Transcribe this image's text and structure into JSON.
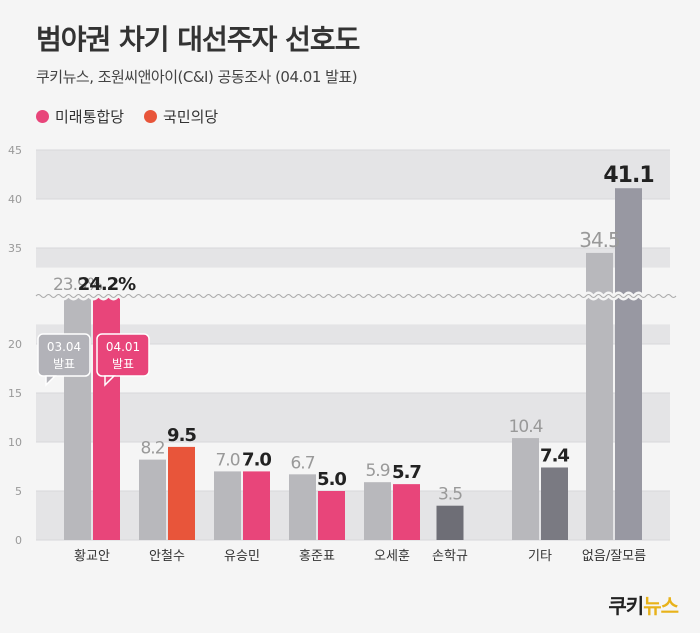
{
  "header": {
    "title": "범야권 차기 대선주자 선호도",
    "subtitle": "쿠키뉴스, 조원씨앤아이(C&I) 공동조사 (04.01 발표)"
  },
  "legend": [
    {
      "label": "미래통합당",
      "color": "#e8457a"
    },
    {
      "label": "국민의당",
      "color": "#e8553a"
    }
  ],
  "logo": {
    "main": "쿠키",
    "accent": "뉴스"
  },
  "callouts": [
    {
      "date": "03.04",
      "text": "발표"
    },
    {
      "date": "04.01",
      "text": "발표"
    }
  ],
  "chart_data": {
    "type": "bar",
    "categories": [
      "황교안",
      "안철수",
      "유승민",
      "홍준표",
      "오세훈",
      "손학규",
      "기타",
      "없음/잘모름"
    ],
    "series": [
      {
        "name": "03.04 발표",
        "values": [
          23.9,
          8.2,
          7.0,
          6.7,
          5.9,
          3.5,
          10.4,
          34.5
        ]
      },
      {
        "name": "04.01 발표",
        "values": [
          24.2,
          9.5,
          7.0,
          5.0,
          5.7,
          null,
          7.4,
          41.1
        ]
      }
    ],
    "value_labels": {
      "prev": [
        "23.9%",
        "8.2",
        "7.0",
        "6.7",
        "5.9",
        "3.5",
        "10.4",
        "34.5"
      ],
      "curr": [
        "24.2%",
        "9.5",
        "7.0",
        "5.0",
        "5.7",
        "",
        "7.4",
        "41.1"
      ]
    },
    "yticks": [
      "0",
      "5",
      "10",
      "15",
      "20",
      "35",
      "40",
      "45"
    ],
    "ylim": [
      0,
      45
    ],
    "axis_break": [
      22,
      33
    ],
    "colors": {
      "prev": "#b8b8bc",
      "curr_mirae": "#e8457a",
      "curr_kukmin": "#e8553a",
      "curr_other": "#7a7a82",
      "curr_none": "#9898a2",
      "solo": "#6e6e76"
    }
  }
}
